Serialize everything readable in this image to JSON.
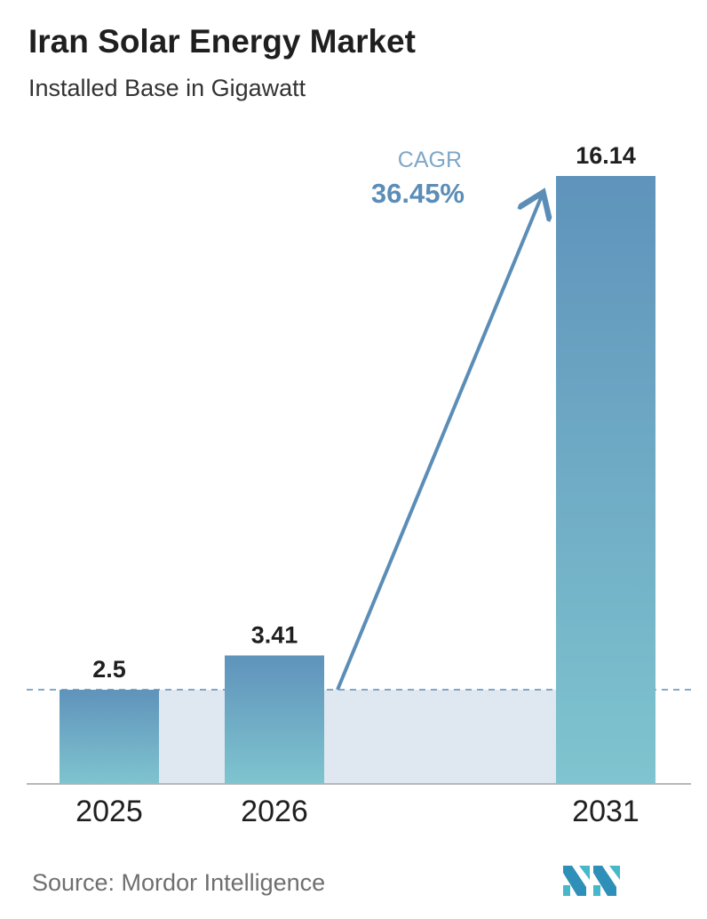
{
  "header": {
    "title": "Iran Solar Energy Market",
    "subtitle": "Installed Base in Gigawatt"
  },
  "chart_data": {
    "type": "bar",
    "categories": [
      "2025",
      "2026",
      "2031"
    ],
    "values": [
      2.5,
      3.41,
      16.14
    ],
    "value_labels": [
      "2.5",
      "3.41",
      "16.14"
    ],
    "ylim": [
      0,
      16.14
    ],
    "grid": false,
    "annotation": {
      "label": "CAGR",
      "value": "36.45%"
    },
    "colors": {
      "bar_top": "#5f93bb",
      "bar_bottom": "#7fc4cf",
      "band": "#dfe8f1",
      "arrow": "#5b8db7",
      "axis": "#b8b8b8"
    }
  },
  "footer": {
    "source": "Source:  Mordor Intelligence"
  },
  "logo": {
    "icon": "mordor-intelligence-logo-icon"
  }
}
